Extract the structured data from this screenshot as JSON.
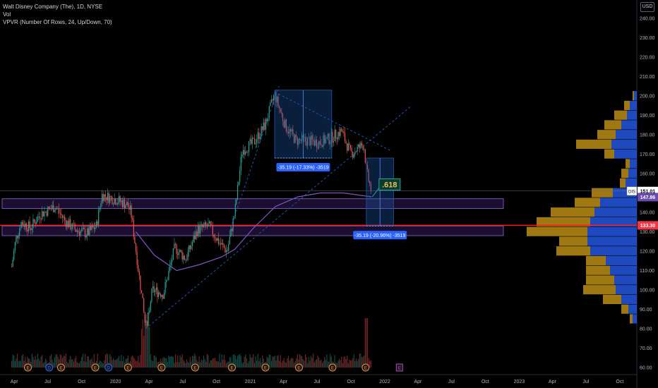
{
  "legend": {
    "symbol_line": "Walt Disney Company (The), 1D, NYSE",
    "vol_line": "Vol",
    "vpvr_line": "VPVR (Number Of Rows, 24, Up/Down, 70)"
  },
  "currency": "USD",
  "colors": {
    "background": "#000000",
    "up": "#26a69a",
    "down": "#ef5350",
    "ma": "#7e57c2",
    "vp_up": "#2962ff",
    "vp_down": "#d4a017",
    "support_line": "#ff1a1a",
    "zone_fill": "#3b1f6b",
    "measure_box": "#1e5aa8",
    "ticker_badge": "#ffffff",
    "price_badge_red": "#f23645"
  },
  "chart_data": {
    "type": "candlestick",
    "y_axis_ticks": [
      60,
      70,
      80,
      90,
      100,
      110,
      120,
      130,
      140,
      150,
      160,
      170,
      180,
      190,
      200,
      210,
      220,
      230,
      240
    ],
    "x_axis_labels": [
      "Apr",
      "Jul",
      "Oct",
      "2020",
      "Apr",
      "Jul",
      "Oct",
      "2021",
      "Apr",
      "Jul",
      "Oct",
      "2022",
      "Apr",
      "Jul",
      "Oct",
      "2023",
      "Apr",
      "Jul",
      "Oct"
    ],
    "ylim": [
      58,
      246
    ],
    "price_path": [
      [
        "2019-03-25",
        112
      ],
      [
        "2019-04-05",
        126
      ],
      [
        "2019-04-20",
        135
      ],
      [
        "2019-05-15",
        132
      ],
      [
        "2019-06-10",
        139
      ],
      [
        "2019-07-20",
        143
      ],
      [
        "2019-08-20",
        135
      ],
      [
        "2019-09-15",
        131
      ],
      [
        "2019-10-15",
        129
      ],
      [
        "2019-11-10",
        133
      ],
      [
        "2019-11-25",
        149
      ],
      [
        "2019-12-10",
        148
      ],
      [
        "2020-01-10",
        146
      ],
      [
        "2020-02-01",
        144
      ],
      [
        "2020-02-12",
        140
      ],
      [
        "2020-02-25",
        121
      ],
      [
        "2020-03-10",
        100
      ],
      [
        "2020-03-23",
        80
      ],
      [
        "2020-04-10",
        100
      ],
      [
        "2020-05-10",
        98
      ],
      [
        "2020-06-10",
        122
      ],
      [
        "2020-07-10",
        116
      ],
      [
        "2020-08-10",
        131
      ],
      [
        "2020-09-10",
        133
      ],
      [
        "2020-10-10",
        124
      ],
      [
        "2020-10-30",
        120
      ],
      [
        "2020-11-20",
        140
      ],
      [
        "2020-12-10",
        172
      ],
      [
        "2021-01-10",
        176
      ],
      [
        "2021-02-10",
        185
      ],
      [
        "2021-03-08",
        201
      ],
      [
        "2021-04-05",
        185
      ],
      [
        "2021-05-05",
        177
      ],
      [
        "2021-06-05",
        177
      ],
      [
        "2021-07-05",
        176
      ],
      [
        "2021-08-05",
        178
      ],
      [
        "2021-09-05",
        182
      ],
      [
        "2021-10-01",
        170
      ],
      [
        "2021-10-20",
        173
      ],
      [
        "2021-11-05",
        175
      ],
      [
        "2021-11-12",
        162
      ],
      [
        "2021-11-20",
        155
      ],
      [
        "2021-11-26",
        151
      ]
    ],
    "volume_spike_date": "2020-03-23",
    "support_price": 133.3,
    "current_price": 151.0,
    "ma_price": 147.86,
    "price_badges": [
      {
        "label": "DIS",
        "value": "151.01"
      },
      {
        "label": "",
        "value": "147.86"
      },
      {
        "label": "",
        "value": "133.30"
      }
    ],
    "zones": [
      {
        "from": 142,
        "to": 147
      },
      {
        "from": 128,
        "to": 133
      }
    ],
    "measurements": [
      {
        "text": "-35.19 (-17.33%) -3519",
        "from": 203,
        "to": 168
      },
      {
        "text": "-35.19 (-20.96%) -3519",
        "from": 168,
        "to": 133
      }
    ],
    "fib_label": ".618",
    "volume_profile": [
      {
        "price": 200,
        "up": 4,
        "down": 2
      },
      {
        "price": 195,
        "up": 10,
        "down": 8
      },
      {
        "price": 190,
        "up": 14,
        "down": 18
      },
      {
        "price": 185,
        "up": 22,
        "down": 24
      },
      {
        "price": 180,
        "up": 30,
        "down": 26
      },
      {
        "price": 175,
        "up": 36,
        "down": 50
      },
      {
        "price": 170,
        "up": 32,
        "down": 14
      },
      {
        "price": 165,
        "up": 10,
        "down": 6
      },
      {
        "price": 160,
        "up": 12,
        "down": 10
      },
      {
        "price": 155,
        "up": 16,
        "down": 8
      },
      {
        "price": 150,
        "up": 34,
        "down": 30
      },
      {
        "price": 145,
        "up": 52,
        "down": 36
      },
      {
        "price": 140,
        "up": 60,
        "down": 62
      },
      {
        "price": 135,
        "up": 66,
        "down": 76
      },
      {
        "price": 130,
        "up": 70,
        "down": 86
      },
      {
        "price": 125,
        "up": 70,
        "down": 40
      },
      {
        "price": 120,
        "up": 66,
        "down": 48
      },
      {
        "price": 115,
        "up": 44,
        "down": 28
      },
      {
        "price": 110,
        "up": 38,
        "down": 34
      },
      {
        "price": 105,
        "up": 32,
        "down": 40
      },
      {
        "price": 100,
        "up": 30,
        "down": 46
      },
      {
        "price": 95,
        "up": 22,
        "down": 26
      },
      {
        "price": 90,
        "up": 12,
        "down": 10
      },
      {
        "price": 85,
        "up": 6,
        "down": 4
      }
    ],
    "earnings_markers": [
      "2019-05-08",
      "2019-08-06",
      "2019-11-07",
      "2020-02-04",
      "2020-05-05",
      "2020-08-04",
      "2020-11-12",
      "2021-02-11",
      "2021-05-13",
      "2021-08-12",
      "2021-11-10"
    ],
    "dividend_markers": [
      "2019-07-05",
      "2019-12-13"
    ],
    "upcoming_earnings": "2022-02-09"
  }
}
